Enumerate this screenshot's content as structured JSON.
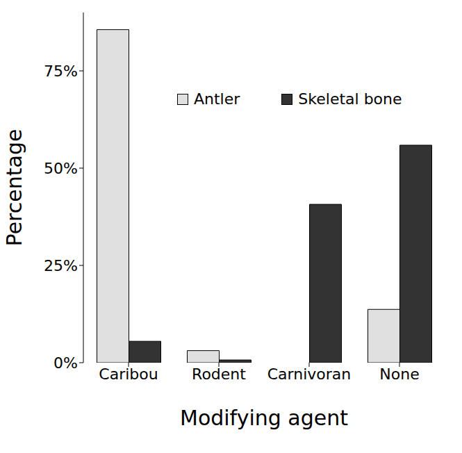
{
  "chart_data": {
    "type": "bar",
    "categories": [
      "Caribou",
      "Rodent",
      "Carnivoran",
      "None"
    ],
    "series": [
      {
        "name": "Antler",
        "color": "#e0e0e0",
        "values": [
          85.6,
          3.1,
          0,
          13.7
        ]
      },
      {
        "name": "Skeletal bone",
        "color": "#333333",
        "values": [
          5.5,
          0.7,
          40.7,
          55.9
        ]
      }
    ],
    "x_label": "Modifying agent",
    "y_label": "Percentage",
    "ylim": [
      0,
      90
    ],
    "yticks": [
      {
        "value": 0,
        "label": "0%"
      },
      {
        "value": 25,
        "label": "25%"
      },
      {
        "value": 50,
        "label": "50%"
      },
      {
        "value": 75,
        "label": "75%"
      }
    ],
    "legend": "upper right",
    "grid": false
  }
}
